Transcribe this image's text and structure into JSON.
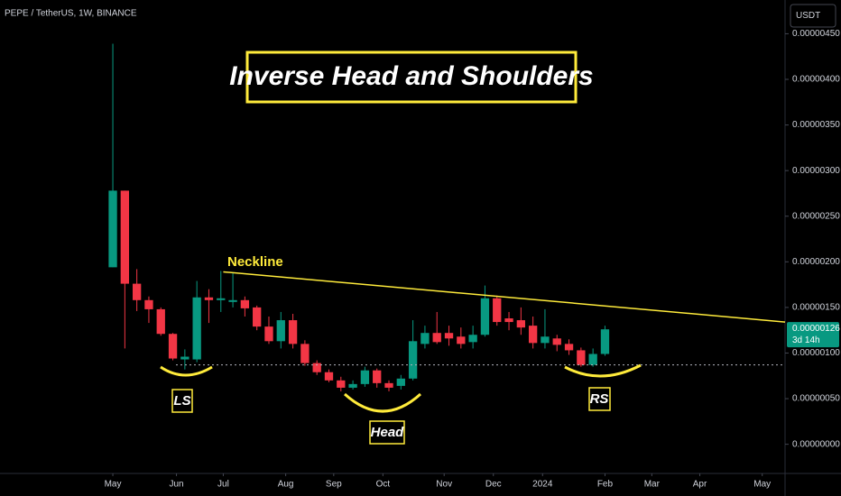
{
  "header": "PEPE / TetherUS, 1W, BINANCE",
  "currency": "USDT",
  "chart_data": {
    "type": "candlestick",
    "title": "Inverse Head and Shoulders",
    "up_color": "#089981",
    "down_color": "#f23645",
    "x": [
      0,
      1,
      2,
      3,
      4,
      5,
      6,
      7,
      8,
      9,
      10,
      11,
      12,
      13,
      14,
      15,
      16,
      17,
      18,
      19,
      20,
      21,
      22,
      23,
      24,
      25,
      26,
      27,
      28,
      29,
      30,
      31,
      32,
      33,
      34,
      35,
      36,
      37,
      38,
      39,
      40,
      41
    ],
    "open": [
      1.94e-06,
      2.78e-06,
      1.76e-06,
      1.58e-06,
      1.48e-06,
      1.21e-06,
      9.3e-07,
      9.3e-07,
      1.61e-06,
      1.58e-06,
      1.56e-06,
      1.58e-06,
      1.5e-06,
      1.29e-06,
      1.13e-06,
      1.36e-06,
      1.1e-06,
      8.9e-07,
      7.9e-07,
      7e-07,
      6.2e-07,
      6.6e-07,
      8.1e-07,
      6.7e-07,
      6.4e-07,
      7.2e-07,
      1.1e-06,
      1.22e-06,
      1.22e-06,
      1.18e-06,
      1.12e-06,
      1.2e-06,
      1.6e-06,
      1.38e-06,
      1.36e-06,
      1.3e-06,
      1.11e-06,
      1.16e-06,
      1.1e-06,
      1.03e-06,
      8.7e-07,
      9.9e-07
    ],
    "high": [
      4.39e-06,
      2.78e-06,
      1.92e-06,
      1.62e-06,
      1.5e-06,
      1.22e-06,
      1.04e-06,
      1.79e-06,
      1.7e-06,
      1.9e-06,
      1.88e-06,
      1.62e-06,
      1.52e-06,
      1.4e-06,
      1.45e-06,
      1.43e-06,
      1.14e-06,
      9.2e-07,
      8.2e-07,
      7.4e-07,
      7e-07,
      8.5e-07,
      8.3e-07,
      7e-07,
      7.6e-07,
      1.36e-06,
      1.3e-06,
      1.45e-06,
      1.3e-06,
      1.28e-06,
      1.3e-06,
      1.74e-06,
      1.63e-06,
      1.45e-06,
      1.5e-06,
      1.4e-06,
      1.48e-06,
      1.2e-06,
      1.15e-06,
      1.06e-06,
      1.05e-06,
      1.3e-06
    ],
    "low": [
      1.94e-06,
      1.05e-06,
      1.46e-06,
      1.33e-06,
      1.19e-06,
      9.2e-07,
      8.2e-07,
      9e-07,
      1.33e-06,
      1.45e-06,
      1.5e-06,
      1.4e-06,
      1.25e-06,
      1.1e-06,
      1.05e-06,
      1.05e-06,
      8.6e-07,
      7.6e-07,
      6.8e-07,
      5.8e-07,
      6e-07,
      6.3e-07,
      6.2e-07,
      5.8e-07,
      6e-07,
      7e-07,
      1.05e-06,
      1.1e-06,
      1.08e-06,
      1.05e-06,
      1.05e-06,
      1.18e-06,
      1.3e-06,
      1.25e-06,
      1.2e-06,
      1.05e-06,
      1.05e-06,
      1.02e-06,
      9.8e-07,
      8.5e-07,
      8.5e-07,
      9.7e-07
    ],
    "close": [
      2.78e-06,
      1.76e-06,
      1.58e-06,
      1.48e-06,
      1.21e-06,
      9.4e-07,
      9.6e-07,
      1.61e-06,
      1.58e-06,
      1.6e-06,
      1.58e-06,
      1.49e-06,
      1.29e-06,
      1.13e-06,
      1.36e-06,
      1.1e-06,
      8.9e-07,
      7.9e-07,
      7e-07,
      6.2e-07,
      6.6e-07,
      8.1e-07,
      6.7e-07,
      6.2e-07,
      7.2e-07,
      1.13e-06,
      1.22e-06,
      1.12e-06,
      1.16e-06,
      1.1e-06,
      1.2e-06,
      1.6e-06,
      1.34e-06,
      1.34e-06,
      1.28e-06,
      1.11e-06,
      1.18e-06,
      1.09e-06,
      1.03e-06,
      8.7e-07,
      9.9e-07,
      1.26e-06
    ],
    "xlim": [
      -9.4,
      56
    ],
    "ylim": [
      -3.2e-07,
      4.87e-06
    ],
    "xticks": [
      {
        "value": 0,
        "label": "May"
      },
      {
        "value": 5.3,
        "label": "Jun"
      },
      {
        "value": 9.2,
        "label": "Jul"
      },
      {
        "value": 14.4,
        "label": "Aug"
      },
      {
        "value": 18.4,
        "label": "Sep"
      },
      {
        "value": 22.5,
        "label": "Oct"
      },
      {
        "value": 27.6,
        "label": "Nov"
      },
      {
        "value": 31.7,
        "label": "Dec"
      },
      {
        "value": 35.8,
        "label": "2024"
      },
      {
        "value": 41,
        "label": "Feb"
      },
      {
        "value": 44.9,
        "label": "Mar"
      },
      {
        "value": 48.9,
        "label": "Apr"
      },
      {
        "value": 54.1,
        "label": "May"
      }
    ],
    "yticks": [
      {
        "value": 0,
        "label": "0.00000000"
      },
      {
        "value": 5e-07,
        "label": "0.00000050"
      },
      {
        "value": 1e-06,
        "label": "0.00000100"
      },
      {
        "value": 1.5e-06,
        "label": "0.00000150"
      },
      {
        "value": 2e-06,
        "label": "0.00000200"
      },
      {
        "value": 2.5e-06,
        "label": "0.00000250"
      },
      {
        "value": 3e-06,
        "label": "0.00000300"
      },
      {
        "value": 3.5e-06,
        "label": "0.00000350"
      },
      {
        "value": 4e-06,
        "label": "0.00000400"
      },
      {
        "value": 4.5e-06,
        "label": "0.00000450"
      }
    ],
    "neckline": {
      "label": "Neckline",
      "x": [
        9.2,
        56
      ],
      "y": [
        1.89e-06,
        1.34e-06
      ]
    },
    "support": 8.7e-07,
    "price_label": "0.00000126",
    "countdown": "3d 14h",
    "annotations": {
      "left_shoulder": "LS",
      "head": "Head",
      "right_shoulder": "RS"
    }
  }
}
